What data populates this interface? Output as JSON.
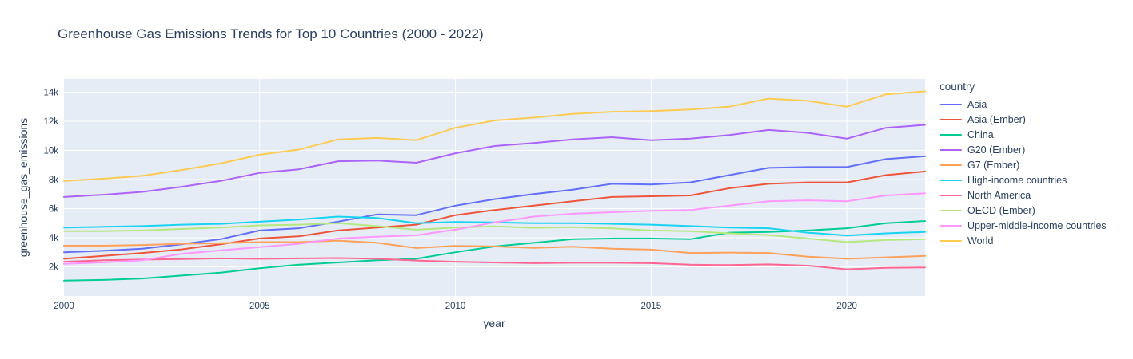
{
  "colors": {
    "page_background": "#ffffff",
    "plot_background": "#E5ECF6",
    "grid": "#ffffff",
    "text": "#2a3f5f"
  },
  "chart_data": {
    "type": "line",
    "title": "Greenhouse Gas Emissions Trends for Top 10 Countries (2000 - 2022)",
    "xlabel": "year",
    "ylabel": "greenhouse_gas_emissions",
    "legend_title": "country",
    "legend_position": "right",
    "grid": true,
    "xlim": [
      2000,
      2022
    ],
    "ylim": [
      0,
      14900
    ],
    "x_ticks": [
      2000,
      2005,
      2010,
      2015,
      2020
    ],
    "y_ticks": [
      {
        "value": 2000,
        "label": "2k"
      },
      {
        "value": 4000,
        "label": "4k"
      },
      {
        "value": 6000,
        "label": "6k"
      },
      {
        "value": 8000,
        "label": "8k"
      },
      {
        "value": 10000,
        "label": "10k"
      },
      {
        "value": 12000,
        "label": "12k"
      },
      {
        "value": 14000,
        "label": "14k"
      }
    ],
    "x": [
      2000,
      2001,
      2002,
      2003,
      2004,
      2005,
      2006,
      2007,
      2008,
      2009,
      2010,
      2011,
      2012,
      2013,
      2014,
      2015,
      2016,
      2017,
      2018,
      2019,
      2020,
      2021,
      2022
    ],
    "series": [
      {
        "name": "Asia",
        "color": "#636EFA",
        "values": [
          3000,
          3100,
          3250,
          3550,
          3900,
          4500,
          4650,
          5100,
          5600,
          5550,
          6200,
          6650,
          7000,
          7300,
          7700,
          7650,
          7800,
          8300,
          8800,
          8850,
          8850,
          9400,
          9600
        ]
      },
      {
        "name": "Asia (Ember)",
        "color": "#EF553B",
        "values": [
          2550,
          2750,
          2950,
          3200,
          3550,
          3950,
          4100,
          4500,
          4700,
          4900,
          5550,
          5900,
          6200,
          6500,
          6800,
          6850,
          6900,
          7400,
          7700,
          7800,
          7800,
          8300,
          8550
        ]
      },
      {
        "name": "China",
        "color": "#00CC96",
        "values": [
          1050,
          1100,
          1200,
          1400,
          1600,
          1900,
          2150,
          2300,
          2450,
          2550,
          3000,
          3400,
          3650,
          3900,
          3950,
          3950,
          3900,
          4350,
          4400,
          4500,
          4650,
          5000,
          5150
        ]
      },
      {
        "name": "G20 (Ember)",
        "color": "#AB63FA",
        "values": [
          6800,
          6950,
          7150,
          7500,
          7900,
          8450,
          8700,
          9250,
          9300,
          9150,
          9800,
          10300,
          10500,
          10750,
          10900,
          10700,
          10800,
          11050,
          11400,
          11200,
          10800,
          11550,
          11750
        ]
      },
      {
        "name": "G7 (Ember)",
        "color": "#FFA15A",
        "values": [
          3450,
          3450,
          3500,
          3580,
          3620,
          3700,
          3700,
          3800,
          3650,
          3290,
          3440,
          3400,
          3300,
          3380,
          3250,
          3180,
          2950,
          2980,
          2950,
          2700,
          2550,
          2650,
          2750
        ]
      },
      {
        "name": "High-income countries",
        "color": "#19D3F3",
        "values": [
          4700,
          4750,
          4800,
          4900,
          4950,
          5100,
          5250,
          5450,
          5350,
          5000,
          5080,
          5050,
          5000,
          5000,
          4950,
          4900,
          4800,
          4700,
          4650,
          4350,
          4150,
          4300,
          4400
        ]
      },
      {
        "name": "North America",
        "color": "#FF6692",
        "values": [
          2350,
          2450,
          2500,
          2530,
          2580,
          2550,
          2580,
          2600,
          2550,
          2430,
          2350,
          2300,
          2250,
          2280,
          2280,
          2250,
          2150,
          2120,
          2170,
          2080,
          1830,
          1930,
          1960
        ]
      },
      {
        "name": "OECD (Ember)",
        "color": "#B6E880",
        "values": [
          4450,
          4450,
          4500,
          4600,
          4700,
          4850,
          4900,
          5000,
          4800,
          4550,
          4700,
          4780,
          4680,
          4730,
          4640,
          4500,
          4450,
          4300,
          4180,
          3950,
          3700,
          3840,
          3900
        ]
      },
      {
        "name": "Upper-middle-income countries",
        "color": "#FF97FF",
        "values": [
          2200,
          2300,
          2450,
          2900,
          3130,
          3350,
          3580,
          3950,
          4070,
          4170,
          4550,
          5050,
          5450,
          5650,
          5750,
          5850,
          5900,
          6200,
          6500,
          6570,
          6500,
          6900,
          7050
        ]
      },
      {
        "name": "World",
        "color": "#FECB52",
        "values": [
          7900,
          8050,
          8250,
          8650,
          9100,
          9700,
          10050,
          10750,
          10850,
          10700,
          11550,
          12050,
          12250,
          12500,
          12650,
          12700,
          12800,
          13000,
          13550,
          13400,
          13000,
          13850,
          14050
        ]
      }
    ]
  }
}
